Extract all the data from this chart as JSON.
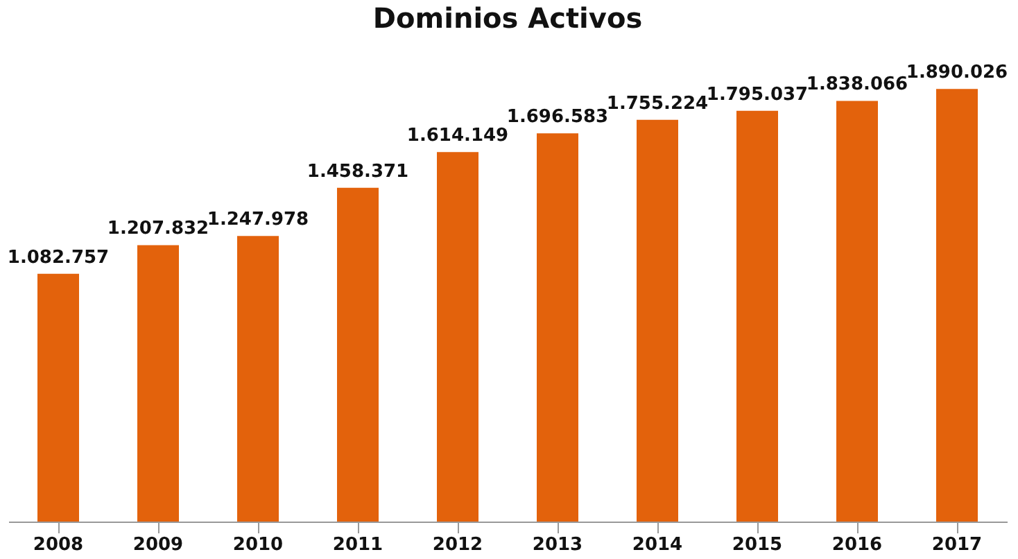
{
  "chart_data": {
    "type": "bar",
    "title": "Dominios Activos",
    "categories": [
      "2008",
      "2009",
      "2010",
      "2011",
      "2012",
      "2013",
      "2014",
      "2015",
      "2016",
      "2017"
    ],
    "values": [
      1082757,
      1207832,
      1247978,
      1458371,
      1614149,
      1696583,
      1755224,
      1795037,
      1838066,
      1890026
    ],
    "value_labels": [
      "1.082.757",
      "1.207.832",
      "1.247.978",
      "1.458.371",
      "1.614.149",
      "1.696.583",
      "1.755.224",
      "1.795.037",
      "1.838.066",
      "1.890.026"
    ],
    "color": "#e3620c"
  }
}
